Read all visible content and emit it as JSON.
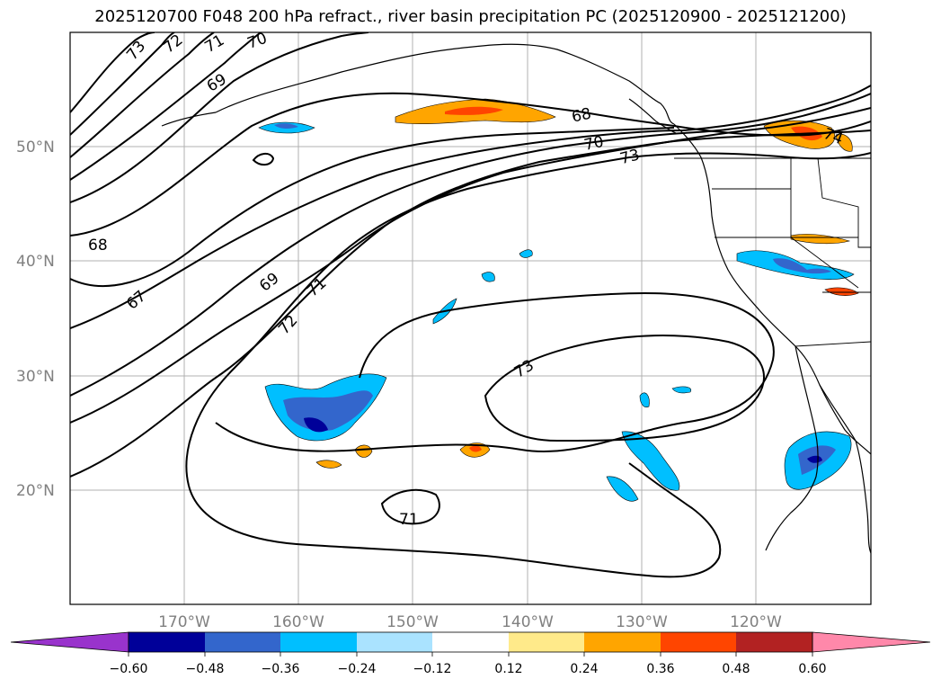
{
  "title": "2025120700 F048 200 hPa refract., river basin precipitation PC (2025120900 - 2025121200)",
  "map": {
    "lat_labels": [
      "50°N",
      "40°N",
      "30°N",
      "20°N"
    ],
    "lon_labels": [
      "170°W",
      "160°W",
      "150°W",
      "140°W",
      "130°W",
      "120°W"
    ],
    "contour_labels": [
      "73",
      "72",
      "71",
      "70",
      "69",
      "68",
      "68",
      "70",
      "73",
      "74",
      "67",
      "69",
      "71",
      "72",
      "73",
      "71"
    ],
    "gridline_color": "#b0b0b0",
    "contour_color": "#000000"
  },
  "colorbar": {
    "colors": [
      "#9933cc",
      "#000099",
      "#3366cc",
      "#00bfff",
      "#aae3ff",
      "#ffffff",
      "#ffea8a",
      "#ffa500",
      "#ff4500",
      "#b22222",
      "#ff88aa"
    ],
    "tick_labels": [
      "−0.60",
      "−0.48",
      "−0.36",
      "−0.24",
      "−0.12",
      "0.12",
      "0.24",
      "0.36",
      "0.48",
      "0.60"
    ]
  }
}
